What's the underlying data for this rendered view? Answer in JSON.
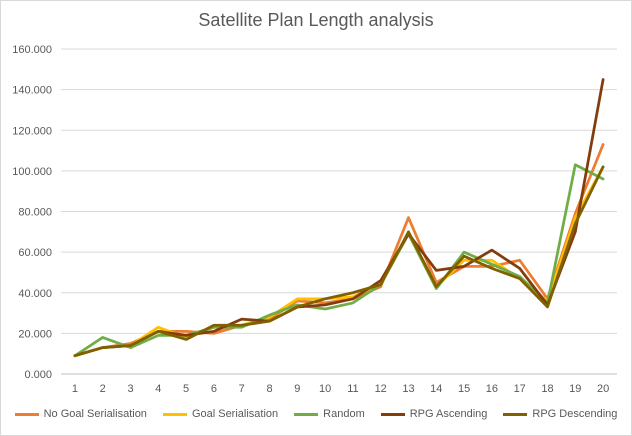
{
  "chart_data": {
    "type": "line",
    "title": "Satellite Plan Length analysis",
    "xlabel": "",
    "ylabel": "",
    "ylim": [
      0,
      160
    ],
    "yticks": [
      "0.000",
      "20.000",
      "40.000",
      "60.000",
      "80.000",
      "100.000",
      "120.000",
      "140.000",
      "160.000"
    ],
    "categories": [
      "1",
      "2",
      "3",
      "4",
      "5",
      "6",
      "7",
      "8",
      "9",
      "10",
      "11",
      "12",
      "13",
      "14",
      "15",
      "16",
      "17",
      "18",
      "19",
      "20"
    ],
    "grid": "horizontal",
    "legend": "bottom",
    "series": [
      {
        "name": "No Goal Serialisation",
        "color": "#ED7D31",
        "values": [
          9,
          13,
          15,
          21,
          21,
          20,
          24,
          27,
          36,
          35,
          37,
          43,
          77,
          45,
          53,
          53,
          56,
          37,
          79,
          113
        ]
      },
      {
        "name": "Goal Serialisation",
        "color": "#FFC000",
        "values": [
          9,
          13,
          14,
          23,
          18,
          23,
          24,
          28,
          37,
          37,
          38,
          44,
          69,
          43,
          56,
          56,
          47,
          36,
          77,
          102
        ]
      },
      {
        "name": "Random",
        "color": "#70AD47",
        "values": [
          9,
          18,
          13,
          19,
          19,
          23,
          23,
          29,
          34,
          32,
          35,
          44,
          69,
          42,
          60,
          54,
          48,
          35,
          103,
          96
        ]
      },
      {
        "name": "RPG Ascending",
        "color": "#843C0C",
        "values": [
          9,
          13,
          14,
          21,
          19,
          21,
          27,
          26,
          33,
          34,
          37,
          46,
          69,
          51,
          53,
          61,
          52,
          34,
          70,
          145
        ]
      },
      {
        "name": "RPG Descending",
        "color": "#806000",
        "values": [
          9,
          13,
          14,
          21,
          17,
          24,
          24,
          26,
          33,
          37,
          40,
          44,
          70,
          43,
          58,
          52,
          47,
          33,
          74,
          102
        ]
      }
    ]
  }
}
